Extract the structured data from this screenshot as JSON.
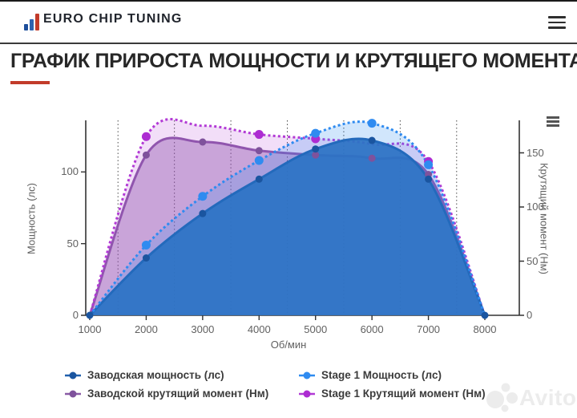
{
  "header": {
    "brand": "EURO CHIP TUNING",
    "menu_icon": "hamburger-icon",
    "logo_colors": [
      "#1d4e9b",
      "#2e62ae",
      "#c23b2a"
    ]
  },
  "title": {
    "text": "ГРАФИК ПРИРОСТА МОЩНОСТИ И КРУТЯЩЕГО МОМЕНТА",
    "accent_color": "#c23b2a"
  },
  "chart_data": {
    "type": "area",
    "x": [
      1000,
      2000,
      3000,
      4000,
      5000,
      6000,
      7000,
      8000
    ],
    "xlabel": "Об/мин",
    "axes": {
      "left": {
        "title": "Мощность (лс)",
        "ticks": [
          0,
          50,
          100
        ],
        "max": 136
      },
      "right": {
        "title": "Крутящий момент (Нм)",
        "ticks": [
          0,
          50,
          100,
          150
        ],
        "max": 180
      }
    },
    "grid": {
      "minor_vertical_dotted": [
        1500,
        2500,
        3500,
        4500,
        5500,
        6500,
        7500
      ]
    },
    "series": [
      {
        "name": "Заводская мощность (лс)",
        "axis": "left",
        "dash": "solid",
        "color": "#2160ad",
        "fill": "rgba(44,108,184,0.93)",
        "marker_color": "#1a55a0",
        "marker_r": 4.5,
        "values": [
          0,
          40,
          71,
          95,
          116,
          122,
          95,
          0
        ],
        "marker_idx": [
          0,
          1,
          2,
          3,
          4,
          5,
          6,
          7
        ]
      },
      {
        "name": "Stage 1 Мощность (лс)",
        "axis": "left",
        "dash": "dotted",
        "color": "#2f8bf0",
        "fill": "rgba(47,139,240,0.22)",
        "marker_color": "#2f8bf0",
        "marker_r": 5.5,
        "values": [
          0,
          49,
          83,
          108,
          127,
          134,
          105,
          0
        ],
        "marker_idx": [
          1,
          2,
          3,
          4,
          5,
          6
        ]
      },
      {
        "name": "Заводской крутящий момент (Нм)",
        "axis": "right",
        "dash": "solid",
        "color": "#8a5ba6",
        "fill": "rgba(138,91,166,0.42)",
        "marker_color": "#7f529c",
        "marker_r": 4.5,
        "values": [
          0,
          148,
          160,
          152,
          148,
          145,
          130,
          0
        ],
        "marker_idx": [
          1,
          2,
          3,
          4,
          5,
          6
        ]
      },
      {
        "name": "Stage 1 Крутящий момент (Нм)",
        "axis": "right",
        "dash": "dotted",
        "color": "#b23ad5",
        "fill": "rgba(178,58,213,0.17)",
        "marker_color": "#ad2cd2",
        "marker_r": 5.5,
        "values": [
          0,
          165,
          175,
          167,
          163,
          158,
          142,
          0
        ],
        "marker_idx": [
          1,
          3,
          4,
          6
        ]
      }
    ],
    "legend": {
      "position": "bottom",
      "columns": [
        [
          0,
          2
        ],
        [
          1,
          3
        ]
      ]
    },
    "menu_icon": "chart-context-menu-icon"
  },
  "watermark": {
    "text": "Avito",
    "icon": "avito-logo-icon"
  }
}
